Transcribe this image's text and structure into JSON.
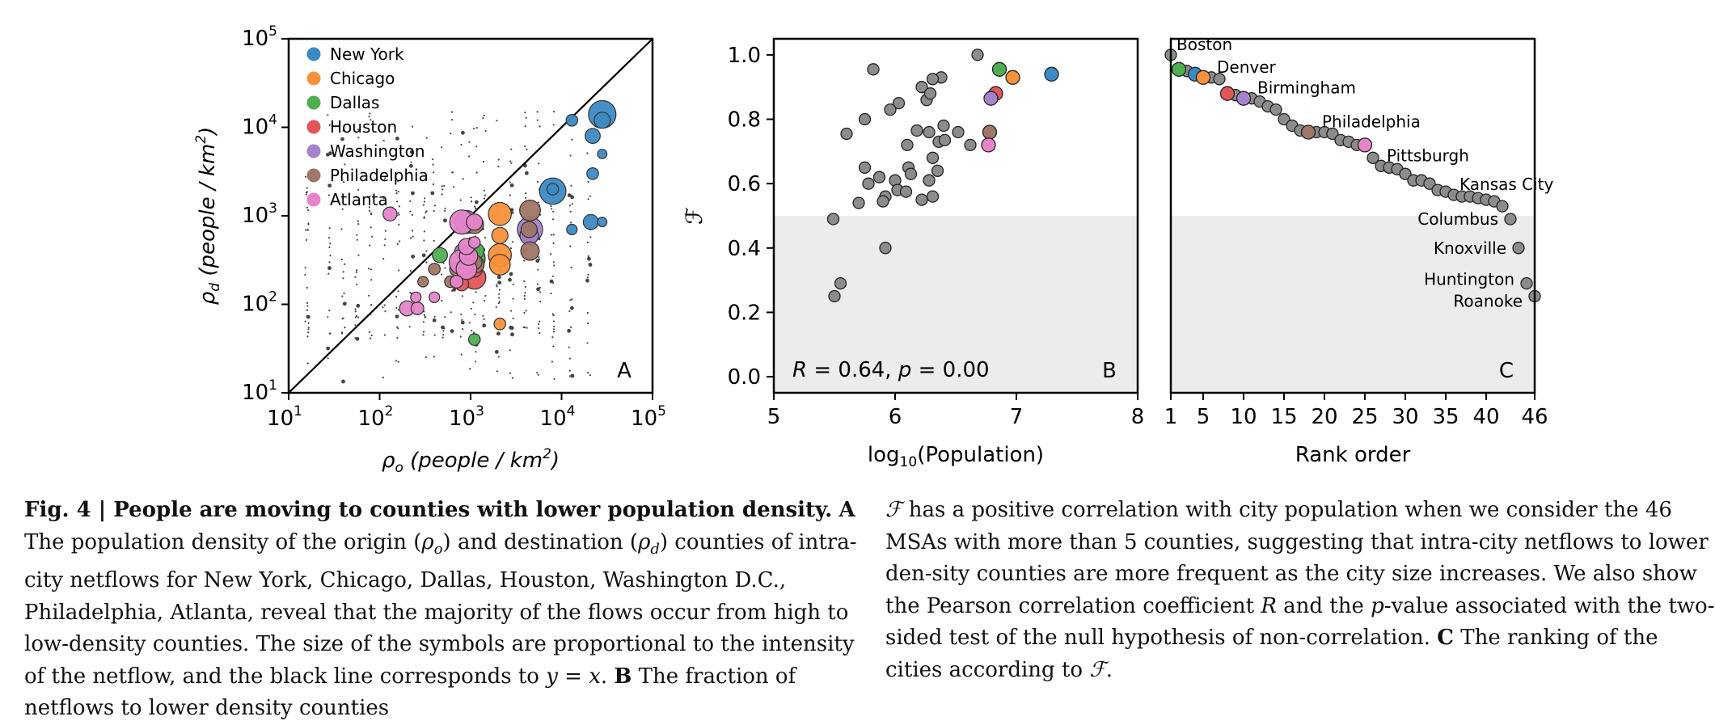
{
  "chart_data": [
    {
      "type": "scatter",
      "panel_label": "A",
      "xlabel_prefix": "ρ",
      "xlabel_sub": "o",
      "xlabel_text": " (people / km",
      "xlabel_sup": "2",
      "ylabel_prefix": "ρ",
      "ylabel_sub": "d",
      "ylabel_text": " (people / km",
      "ylabel_sup": "2",
      "x_scale": "log",
      "y_scale": "log",
      "xlim": [
        10,
        100000
      ],
      "ylim": [
        10,
        100000
      ],
      "x_ticks": [
        {
          "base": "10",
          "exp": "1",
          "value": 10
        },
        {
          "base": "10",
          "exp": "2",
          "value": 100
        },
        {
          "base": "10",
          "exp": "3",
          "value": 1000
        },
        {
          "base": "10",
          "exp": "4",
          "value": 10000
        },
        {
          "base": "10",
          "exp": "5",
          "value": 100000
        }
      ],
      "y_ticks": [
        {
          "base": "10",
          "exp": "1",
          "value": 10
        },
        {
          "base": "10",
          "exp": "2",
          "value": 100
        },
        {
          "base": "10",
          "exp": "3",
          "value": 1000
        },
        {
          "base": "10",
          "exp": "4",
          "value": 10000
        },
        {
          "base": "10",
          "exp": "5",
          "value": 100000
        }
      ],
      "legend_position": "top-left",
      "reference_line": "y = x",
      "series": [
        {
          "name": "New York",
          "color": "#3c8ac4",
          "points": [
            {
              "x": 28000,
              "y": 14000,
              "s": 1.0
            },
            {
              "x": 8000,
              "y": 1900,
              "s": 0.95
            },
            {
              "x": 28000,
              "y": 12000,
              "s": 0.5
            },
            {
              "x": 22000,
              "y": 8000,
              "s": 0.45
            },
            {
              "x": 22000,
              "y": 3000,
              "s": 0.3
            },
            {
              "x": 21000,
              "y": 850,
              "s": 0.45
            },
            {
              "x": 13000,
              "y": 12000,
              "s": 0.3
            },
            {
              "x": 28000,
              "y": 5000,
              "s": 0.2
            },
            {
              "x": 8000,
              "y": 2000,
              "s": 0.3
            },
            {
              "x": 28000,
              "y": 850,
              "s": 0.2
            },
            {
              "x": 13000,
              "y": 700,
              "s": 0.25
            }
          ]
        },
        {
          "name": "Chicago",
          "color": "#f7913a",
          "points": [
            {
              "x": 2100,
              "y": 1050,
              "s": 0.8
            },
            {
              "x": 2100,
              "y": 360,
              "s": 0.8
            },
            {
              "x": 2100,
              "y": 280,
              "s": 0.7
            },
            {
              "x": 2100,
              "y": 600,
              "s": 0.5
            },
            {
              "x": 4500,
              "y": 700,
              "s": 0.4
            },
            {
              "x": 2100,
              "y": 60,
              "s": 0.3
            },
            {
              "x": 1100,
              "y": 250,
              "s": 0.5
            }
          ]
        },
        {
          "name": "Dallas",
          "color": "#4fae52",
          "points": [
            {
              "x": 1050,
              "y": 330,
              "s": 0.9
            },
            {
              "x": 1150,
              "y": 400,
              "s": 0.5
            },
            {
              "x": 460,
              "y": 360,
              "s": 0.45
            },
            {
              "x": 1100,
              "y": 40,
              "s": 0.3
            }
          ]
        },
        {
          "name": "Houston",
          "color": "#e15658",
          "points": [
            {
              "x": 1100,
              "y": 200,
              "s": 0.8
            },
            {
              "x": 950,
              "y": 300,
              "s": 0.6
            },
            {
              "x": 1100,
              "y": 250,
              "s": 0.5
            },
            {
              "x": 800,
              "y": 170,
              "s": 0.4
            }
          ]
        },
        {
          "name": "Washington",
          "color": "#a582cc",
          "points": [
            {
              "x": 4500,
              "y": 700,
              "s": 0.9
            },
            {
              "x": 900,
              "y": 850,
              "s": 0.8
            },
            {
              "x": 4400,
              "y": 600,
              "s": 0.6
            },
            {
              "x": 800,
              "y": 400,
              "s": 0.4
            }
          ]
        },
        {
          "name": "Philadelphia",
          "color": "#9f7667",
          "points": [
            {
              "x": 4500,
              "y": 1150,
              "s": 0.7
            },
            {
              "x": 4500,
              "y": 400,
              "s": 0.6
            },
            {
              "x": 1100,
              "y": 800,
              "s": 0.6
            },
            {
              "x": 1150,
              "y": 280,
              "s": 0.5
            },
            {
              "x": 1100,
              "y": 300,
              "s": 0.45
            },
            {
              "x": 700,
              "y": 250,
              "s": 0.4
            },
            {
              "x": 600,
              "y": 180,
              "s": 0.3
            },
            {
              "x": 400,
              "y": 250,
              "s": 0.3
            },
            {
              "x": 300,
              "y": 180,
              "s": 0.25
            },
            {
              "x": 4400,
              "y": 700,
              "s": 0.5
            }
          ]
        },
        {
          "name": "Atlanta",
          "color": "#e585c8",
          "points": [
            {
              "x": 800,
              "y": 850,
              "s": 0.85
            },
            {
              "x": 800,
              "y": 300,
              "s": 0.9
            },
            {
              "x": 900,
              "y": 250,
              "s": 0.7
            },
            {
              "x": 950,
              "y": 350,
              "s": 0.6
            },
            {
              "x": 900,
              "y": 450,
              "s": 0.5
            },
            {
              "x": 200,
              "y": 90,
              "s": 0.45
            },
            {
              "x": 260,
              "y": 90,
              "s": 0.35
            },
            {
              "x": 130,
              "y": 1050,
              "s": 0.4
            },
            {
              "x": 1100,
              "y": 850,
              "s": 0.5
            },
            {
              "x": 700,
              "y": 180,
              "s": 0.35
            },
            {
              "x": 1100,
              "y": 500,
              "s": 0.3
            },
            {
              "x": 250,
              "y": 120,
              "s": 0.25
            },
            {
              "x": 400,
              "y": 120,
              "s": 0.25
            }
          ]
        }
      ]
    },
    {
      "type": "scatter",
      "panel_label": "B",
      "xlabel_pre": "log",
      "xlabel_sub": "10",
      "xlabel_post": "(Population)",
      "ylabel": "ℱ",
      "xlim": [
        5,
        8
      ],
      "ylim": [
        -0.05,
        1.05
      ],
      "x_ticks": [
        "5",
        "6",
        "7",
        "8"
      ],
      "y_ticks": [
        "0.0",
        "0.2",
        "0.4",
        "0.6",
        "0.8",
        "1.0"
      ],
      "shaded_region": [
        -0.05,
        0.5
      ],
      "annotation": {
        "r_label": "R",
        "r_value": "0.64",
        "p_label": "p",
        "p_value": "0.00"
      },
      "grey_points": [
        [
          6.68,
          1.0
        ],
        [
          5.82,
          0.955
        ],
        [
          6.38,
          0.93
        ],
        [
          6.31,
          0.925
        ],
        [
          6.22,
          0.9
        ],
        [
          6.03,
          0.85
        ],
        [
          5.96,
          0.83
        ],
        [
          6.26,
          0.86
        ],
        [
          6.29,
          0.88
        ],
        [
          5.75,
          0.8
        ],
        [
          6.52,
          0.76
        ],
        [
          5.6,
          0.755
        ],
        [
          6.18,
          0.765
        ],
        [
          6.28,
          0.76
        ],
        [
          6.4,
          0.78
        ],
        [
          6.62,
          0.72
        ],
        [
          6.1,
          0.72
        ],
        [
          6.36,
          0.73
        ],
        [
          6.41,
          0.735
        ],
        [
          6.31,
          0.68
        ],
        [
          5.75,
          0.65
        ],
        [
          6.11,
          0.65
        ],
        [
          6.35,
          0.64
        ],
        [
          5.87,
          0.62
        ],
        [
          6.0,
          0.61
        ],
        [
          6.13,
          0.63
        ],
        [
          6.28,
          0.61
        ],
        [
          5.78,
          0.6
        ],
        [
          6.02,
          0.58
        ],
        [
          6.09,
          0.575
        ],
        [
          6.22,
          0.55
        ],
        [
          6.31,
          0.56
        ],
        [
          5.7,
          0.54
        ],
        [
          5.92,
          0.56
        ],
        [
          5.9,
          0.545
        ],
        [
          5.49,
          0.49
        ],
        [
          5.92,
          0.4
        ],
        [
          5.55,
          0.29
        ],
        [
          5.5,
          0.25
        ]
      ],
      "colored_points": [
        {
          "name": "New York",
          "x": 7.29,
          "y": 0.94,
          "color": "#3c8ac4"
        },
        {
          "name": "Chicago",
          "x": 6.97,
          "y": 0.93,
          "color": "#f7913a"
        },
        {
          "name": "Dallas",
          "x": 6.86,
          "y": 0.955,
          "color": "#4fae52"
        },
        {
          "name": "Houston",
          "x": 6.83,
          "y": 0.88,
          "color": "#e15658"
        },
        {
          "name": "Washington",
          "x": 6.79,
          "y": 0.865,
          "color": "#a582cc"
        },
        {
          "name": "Philadelphia",
          "x": 6.78,
          "y": 0.76,
          "color": "#9f7667"
        },
        {
          "name": "Atlanta",
          "x": 6.77,
          "y": 0.72,
          "color": "#e585c8"
        }
      ]
    },
    {
      "type": "scatter",
      "panel_label": "C",
      "xlabel": "Rank order",
      "xlim": [
        1,
        46
      ],
      "ylim": [
        -0.05,
        1.05
      ],
      "x_ticks": [
        "1",
        "5",
        "10",
        "15",
        "20",
        "25",
        "30",
        "35",
        "40",
        "46"
      ],
      "shaded_region": [
        -0.05,
        0.5
      ],
      "values": [
        1.0,
        0.955,
        0.95,
        0.94,
        0.93,
        0.93,
        0.925,
        0.88,
        0.875,
        0.865,
        0.865,
        0.855,
        0.84,
        0.83,
        0.8,
        0.78,
        0.765,
        0.76,
        0.76,
        0.76,
        0.755,
        0.735,
        0.73,
        0.72,
        0.72,
        0.68,
        0.655,
        0.65,
        0.645,
        0.63,
        0.61,
        0.61,
        0.6,
        0.58,
        0.575,
        0.565,
        0.56,
        0.56,
        0.555,
        0.55,
        0.545,
        0.53,
        0.49,
        0.4,
        0.29,
        0.25
      ],
      "highlighted": [
        {
          "rank": 2,
          "name": "Dallas",
          "color": "#4fae52"
        },
        {
          "rank": 4,
          "name": "New York",
          "color": "#3c8ac4"
        },
        {
          "rank": 5,
          "name": "Chicago",
          "color": "#f7913a"
        },
        {
          "rank": 8,
          "name": "Houston",
          "color": "#e15658"
        },
        {
          "rank": 10,
          "name": "Washington",
          "color": "#a582cc"
        },
        {
          "rank": 18,
          "name": "Philadelphia",
          "color": "#9f7667"
        },
        {
          "rank": 25,
          "name": "Atlanta",
          "color": "#e585c8"
        }
      ],
      "labels": [
        {
          "rank": 1,
          "text": "Boston",
          "side": "right"
        },
        {
          "rank": 6,
          "text": "Denver",
          "side": "right"
        },
        {
          "rank": 11,
          "text": "Birmingham",
          "side": "right"
        },
        {
          "rank": 19,
          "text": "Philadelphia",
          "side": "right"
        },
        {
          "rank": 27,
          "text": "Pittsburgh",
          "side": "right"
        },
        {
          "rank": 36,
          "text": "Kansas City",
          "side": "right"
        },
        {
          "rank": 43,
          "text": "Columbus",
          "side": "left"
        },
        {
          "rank": 44,
          "text": "Knoxville",
          "side": "left"
        },
        {
          "rank": 45,
          "text": "Huntington",
          "side": "left"
        },
        {
          "rank": 46,
          "text": "Roanoke",
          "side": "left"
        }
      ]
    }
  ],
  "caption": {
    "fig_label": "Fig. 4 | ",
    "title": "People are moving to counties with lower population density.",
    "panel_a": "A",
    "text_a1": " The population density of the origin (",
    "rho": "ρ",
    "sub_o": "o",
    "text_a2": ") and destination (",
    "sub_d": "d",
    "text_a3": ") counties of intra-city netflows for New York, Chicago, Dallas, Houston, Washington D.C., Philadelphia, Atlanta, reveal that the majority of the flows occur from high to low-density counties. The size of the symbols are proportional to the intensity of the netflow, and the black line corresponds to ",
    "yx": "y = x",
    "text_a4": ". ",
    "panel_b": "B",
    "text_b1": " The fraction of netflows to lower density counties ",
    "F": "ℱ",
    "text_b2": " has a positive correlation with city population when we consider the 46 MSAs with more than 5 counties, suggesting that intra-city netflows to lower den-sity counties are more frequent as the city size increases. We also show the Pearson correlation coefficient ",
    "R": "R",
    "text_b3": " and the ",
    "p": "p",
    "text_b4": "-value associated with the two-sided test of the null hypothesis of non-correlation. ",
    "panel_c": "C",
    "text_c1": " The ranking of the cities according to ",
    "F2": "ℱ",
    "text_c2": "."
  }
}
